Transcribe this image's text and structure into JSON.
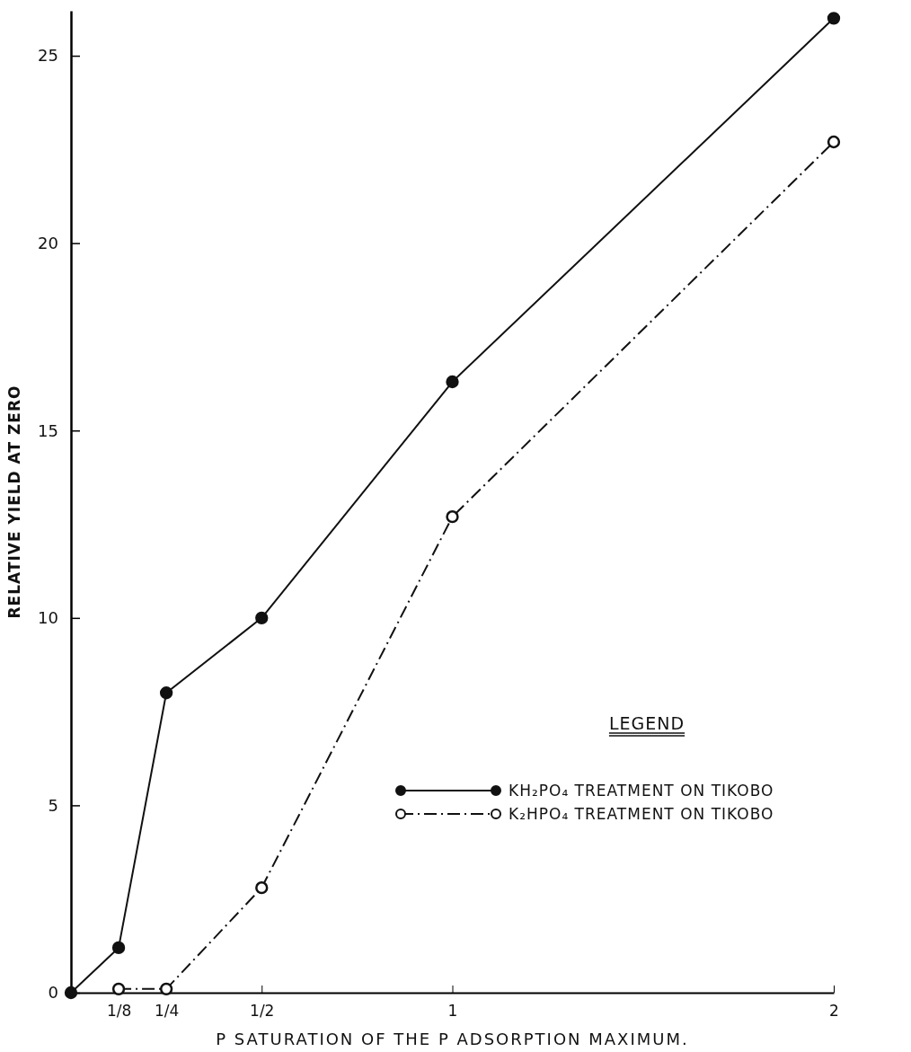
{
  "chart_data": {
    "type": "line",
    "xlabel": "P SATURATION OF THE P ADSORPTION MAXIMUM.",
    "ylabel": "RELATIVE YIELD AT ZERO",
    "legend_title": "LEGEND",
    "xlim": [
      0,
      2
    ],
    "xticks": [
      {
        "value": 0.125,
        "label": "1/8"
      },
      {
        "value": 0.25,
        "label": "1/4"
      },
      {
        "value": 0.5,
        "label": "1/2"
      },
      {
        "value": 1,
        "label": "1"
      },
      {
        "value": 2,
        "label": "2"
      }
    ],
    "ylim": [
      0,
      26.2
    ],
    "yticks": [
      0,
      5,
      10,
      15,
      20,
      25
    ],
    "marker": "circle",
    "legend": "bottom right",
    "grid": false,
    "series": [
      {
        "name": "KH₂PO₄ TREATMENT ON TIKOBO",
        "color": "#111111",
        "line_style": "solid",
        "x": [
          0,
          0.125,
          0.25,
          0.5,
          1,
          2
        ],
        "values": [
          0,
          1.2,
          8.0,
          10.0,
          16.3,
          26.0
        ]
      },
      {
        "name": "K₂HPO₄ TREATMENT ON TIKOBO",
        "color": "#111111",
        "line_style": "dashed",
        "x": [
          0.125,
          0.25,
          0.5,
          1,
          2
        ],
        "values": [
          0.1,
          0.1,
          2.8,
          12.7,
          22.7
        ]
      }
    ]
  }
}
